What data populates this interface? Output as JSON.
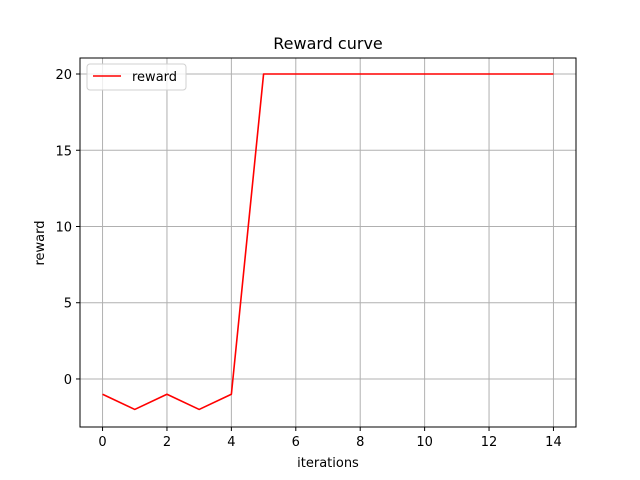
{
  "chart_data": {
    "type": "line",
    "title": "Reward curve",
    "xlabel": "iterations",
    "ylabel": "reward",
    "x": [
      0,
      1,
      2,
      3,
      4,
      5,
      6,
      7,
      8,
      9,
      10,
      11,
      12,
      13,
      14
    ],
    "series": [
      {
        "name": "reward",
        "color": "#ff0000",
        "values": [
          -1,
          -2,
          -1,
          -2,
          -1,
          20,
          20,
          20,
          20,
          20,
          20,
          20,
          20,
          20,
          20
        ]
      }
    ],
    "xlim": [
      -0.7,
      14.7
    ],
    "ylim": [
      -3.15,
      21.05
    ],
    "xticks": [
      0,
      2,
      4,
      6,
      8,
      10,
      12,
      14
    ],
    "yticks": [
      0,
      5,
      10,
      15,
      20
    ],
    "grid": true,
    "grid_color": "#b0b0b0",
    "legend_position": "top-left"
  }
}
